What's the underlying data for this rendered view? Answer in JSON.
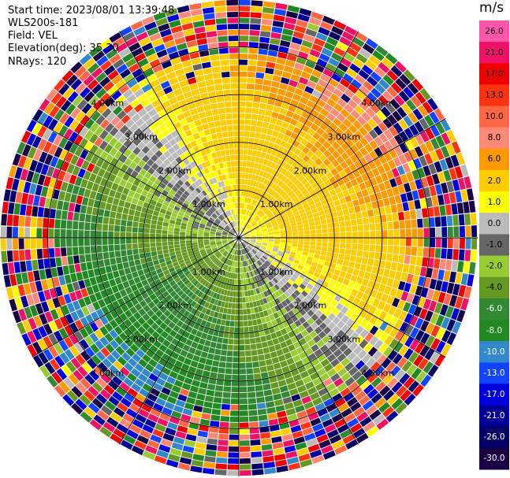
{
  "header": {
    "start_time": "Start time: 2023/08/01 13:39:48",
    "instrument": "WLS200s-181",
    "field": "Field: VEL",
    "elevation": "Elevation(deg): 35.30",
    "nrays": "NRays: 120"
  },
  "colorbar": {
    "unit": "m/s",
    "ticks": [
      "26.0",
      "21.0",
      "17.0",
      "13.0",
      "10.0",
      "8.0",
      "6.0",
      "2.0",
      "1.0",
      "0.0",
      "-1.0",
      "-2.0",
      "-4.0",
      "-6.0",
      "-8.0",
      "-10.0",
      "-13.0",
      "-17.0",
      "-21.0",
      "-26.0",
      "-30.0"
    ],
    "colors": [
      "#ff55aa",
      "#ee1166",
      "#ee0000",
      "#ff3311",
      "#ff6644",
      "#ff8877",
      "#ff9900",
      "#ffcc00",
      "#ffff00",
      "#bbbbbb",
      "#666666",
      "#99cc33",
      "#669922",
      "#338833",
      "#228822",
      "#3388cc",
      "#1144ff",
      "#0000dd",
      "#000099",
      "#000066",
      "#1a0044"
    ]
  },
  "chart_data": {
    "type": "ppi",
    "field": "VEL",
    "units": "m/s",
    "n_rays": 120,
    "elevation_deg": 35.3,
    "range_rings_km": [
      1.0,
      2.0,
      3.0,
      4.0
    ],
    "range_ring_labels": [
      "1.00km",
      "2.00km",
      "3.00km",
      "4.00km"
    ],
    "max_range_km": 5.0,
    "azimuth_spokes_deg": [
      0,
      30,
      60,
      90,
      120,
      150,
      180,
      210,
      240,
      270,
      300,
      330
    ],
    "vmin": -30.0,
    "vmax": 26.0,
    "pattern": "dipole: positive (receding) velocities to the north-east, negative (approaching) to the south-west, zero line running NW-SE; outer gates noisy",
    "color_levels": [
      30,
      26,
      21,
      17,
      13,
      10,
      8,
      6,
      2,
      1,
      0,
      -1,
      -2,
      -4,
      -6,
      -8,
      -10,
      -13,
      -17,
      -21,
      -26,
      -30
    ]
  }
}
